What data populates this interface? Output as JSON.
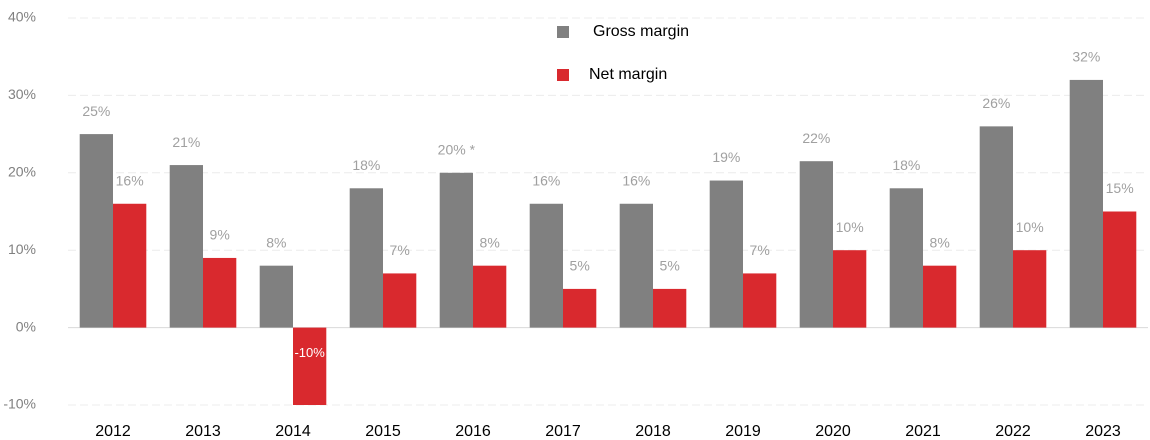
{
  "chart_data": {
    "type": "bar",
    "categories": [
      "2012",
      "2013",
      "2014",
      "2015",
      "2016",
      "2017",
      "2018",
      "2019",
      "2020",
      "2021",
      "2022",
      "2023"
    ],
    "series": [
      {
        "name": "Gross margin",
        "color": "#808080",
        "values": [
          25,
          21,
          8,
          18,
          20,
          16,
          16,
          19,
          21.5,
          18,
          26,
          32
        ],
        "value_labels": [
          "25%",
          "21%",
          "8%",
          "18%",
          "20% *",
          "16%",
          "16%",
          "19%",
          "22%",
          "18%",
          "26%",
          "32%"
        ]
      },
      {
        "name": "Net margin",
        "color": "#d9292e",
        "values": [
          16,
          9,
          -10,
          7,
          8,
          5,
          5,
          7,
          10,
          8,
          10,
          15
        ],
        "value_labels": [
          "16%",
          "9%",
          "-10%",
          "7%",
          "8%",
          "5%",
          "5%",
          "7%",
          "10%",
          "8%",
          "10%",
          "15%"
        ]
      }
    ],
    "ylim": [
      -10,
      40
    ],
    "yticks": [
      {
        "value": -10,
        "label": "-10%"
      },
      {
        "value": 0,
        "label": "0%"
      },
      {
        "value": 10,
        "label": "10%"
      },
      {
        "value": 20,
        "label": "20%"
      },
      {
        "value": 30,
        "label": "30%"
      },
      {
        "value": 40,
        "label": "40%"
      }
    ],
    "grid": true,
    "legend": "top"
  }
}
